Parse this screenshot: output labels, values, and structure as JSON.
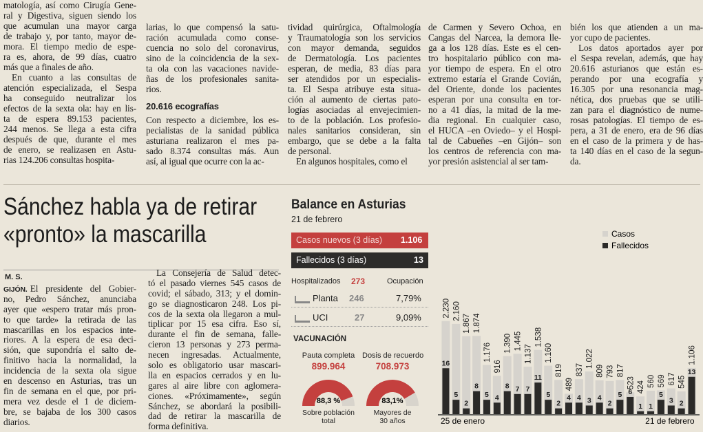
{
  "top_article": {
    "columns": [
      {
        "blocks": [
          {
            "lines": [
              "matología, así como Cirugía Gene-",
              "ral y Digestiva, siguen siendo los",
              "que acumulan una mayor carga",
              "de trabajo y, por tanto, mayor de-",
              "mora. El tiempo medio de espe-",
              "ra es, ahora, de 99 días, cuatro",
              "más que a finales de año."
            ]
          },
          {
            "lines": [
              "En cuanto a las consultas de",
              "atención especializada, el Sespa",
              "ha conseguido neutralizar los",
              "efectos de la sexta ola: hay en lis-",
              "ta de espera 89.153 pacientes,",
              "244 menos. Se llega a esta cifra",
              "después de que, durante el mes",
              "de enero, se realizasen en Astu-",
              "rias 124.206 consultas hospita-"
            ]
          }
        ]
      },
      {
        "blocks": [
          {
            "lines": [
              "larias, lo que compensó la satu-",
              "ración acumulada como conse-",
              "cuencia no solo del coronavirus,",
              "sino de la coincidencia de la sex-",
              "ta ola con las vacaciones navide-",
              "ñas de los profesionales sanita-",
              "rios."
            ]
          },
          {
            "heading": "20.616 ecografías"
          },
          {
            "lines": [
              "Con respecto a diciembre, los es-",
              "pecialistas de la sanidad pública",
              "asturiana realizaron el mes pa-",
              "sado 8.374 consultas más. Aun",
              "así, al igual que ocurre con la ac-"
            ]
          }
        ]
      },
      {
        "blocks": [
          {
            "lines": [
              "tividad quirúrgica, Oftalmología",
              "y Traumatología son los servicios",
              "con mayor demanda, seguidos",
              "de Dermatología. Los pacientes",
              "esperan, de media, 83 días para",
              "ser atendidos por un especialis-",
              "ta. El Sespa atribuye esta situa-",
              "ción al aumento de ciertas pato-",
              "logías asociadas al envejecimien-",
              "to de la población. Los profesio-",
              "nales sanitarios consideran, sin",
              "embargo, que se debe a la falta",
              "de personal."
            ]
          },
          {
            "lines": [
              "En algunos hospitales, como el"
            ]
          }
        ]
      },
      {
        "blocks": [
          {
            "lines": [
              "de Carmen y Severo Ochoa, en",
              "Cangas del Narcea, la demora lle-",
              "ga a los 128 días. Este es el cen-",
              "tro hospitalario público con ma-",
              "yor tiempo de espera. En el otro",
              "extremo estaría el Grande Covián,",
              "del Oriente, donde los pacientes",
              "esperan por una consulta en tor-",
              "no a 41 días, la mitad de la me-",
              "dia regional. En cualquier caso,",
              "el HUCA –en Oviedo– y el Hospi-",
              "tal de Cabueñes –en Gijón– son",
              "los centros de referencia con ma-",
              "yor presión asistencial al ser tam-"
            ]
          }
        ]
      },
      {
        "blocks": [
          {
            "lines": [
              "bién los que atienden a un ma-",
              "yor cupo de pacientes."
            ]
          },
          {
            "lines": [
              "Los datos aportados ayer por",
              "el Sespa revelan, además, que hay",
              "20.616 asturianos que están es-",
              "perando por una ecografía y",
              "16.305 por una resonancia mag-",
              "nética, dos pruebas que se utili-",
              "zan para el diagnóstico de nume-",
              "rosas patologías. El tiempo de es-",
              "pera, a 31 de enero, era de 96 días",
              "en el caso de la primera y de has-",
              "ta 140 días en el caso de la segun-",
              "da."
            ]
          }
        ]
      }
    ]
  },
  "article": {
    "headline": [
      "Sánchez habla ya de retirar",
      "«pronto» la mascarilla"
    ],
    "byline": "M. S.",
    "dateline": "GIJÓN.",
    "columns": [
      [
        "El presidente del Gobier-",
        "no, Pedro Sánchez, anunciaba",
        "ayer que «espero tratar más pron-",
        "to que tarde» la retirada de las",
        "mascarillas en los espacios inte-",
        "riores. A la espera de esa deci-",
        "sión, que supondría el salto de-",
        "finitivo hacia la normalidad, la",
        "incidencia de la sexta ola sigue",
        "en descenso en Asturias, tras un",
        "fin de semana en el que, por pri-",
        "mera vez desde el 1 de diciem-",
        "bre, se bajaba de los 300 casos",
        "diarios."
      ],
      [
        "La Consejería de Salud detec-",
        "tó el pasado viernes 545 casos de",
        "covid; el sábado, 313; y el domin-",
        "go se diagnosticaron 248. Los pi-",
        "cos de la sexta ola llegaron a mul-",
        "tiplicar por 15 esa cifra. Eso sí,",
        "durante el fin de semana, falle-",
        "cieron 13 personas y 273 perma-",
        "necen ingresadas. Actualmente,",
        "solo es obligatorio usar mascari-",
        "lla en espacios cerrados y en lu-",
        "gares al aire libre con aglomera-",
        "ciones. «Próximamente», según",
        "Sánchez, se abordará la posibili-",
        "dad de retirar la mascarilla de",
        "forma definitiva."
      ]
    ]
  },
  "infographic": {
    "title": "Balance en Asturias",
    "date": "21 de febrero",
    "new_cases": {
      "label": "Casos nuevos (3 días)",
      "value": "1.106"
    },
    "deaths": {
      "label": "Fallecidos (3 días)",
      "value": "13"
    },
    "hospital": {
      "header": [
        "Hospitalizados",
        "273",
        "Ocupación"
      ],
      "rows": [
        [
          "Planta",
          "246",
          "7,79%"
        ],
        [
          "UCI",
          "27",
          "9,09%"
        ]
      ]
    },
    "vaccination": {
      "title": "VACUNACIÓN",
      "gauges": [
        {
          "title": "Pauta completa",
          "count": "899.964",
          "value": 88.3,
          "value_label": "88,3 %",
          "caption": [
            "Sobre población",
            "total"
          ]
        },
        {
          "title": "Dosis de recuerdo",
          "count": "708.973",
          "value": 83.1,
          "value_label": "83,1%",
          "caption": [
            "Mayores de",
            "30 años"
          ]
        }
      ]
    }
  },
  "chart_data": {
    "type": "bar",
    "x_labels": [
      "25 de enero",
      "21 de febrero"
    ],
    "ylim": [
      0,
      4400
    ],
    "y2lim": [
      0,
      64
    ],
    "series": [
      {
        "name": "Casos",
        "color": "#d6d3cd",
        "values": [
          2230,
          2160,
          1867,
          1874,
          1176,
          916,
          1390,
          1445,
          1137,
          1538,
          1160,
          819,
          489,
          837,
          1022,
          809,
          793,
          817,
          523,
          424,
          560,
          569,
          617,
          545,
          1106
        ],
        "value_labels": [
          "2.230",
          "2.160",
          "1.867",
          "1.874",
          "1.176",
          "916",
          "1.390",
          "1.445",
          "1.137",
          "1.538",
          "1.160",
          "819",
          "489",
          "837",
          "1.022",
          "809",
          "793",
          "817",
          "523",
          "424",
          "560",
          "569",
          "617",
          "545",
          "1.106"
        ]
      },
      {
        "name": "Fallecidos",
        "color": "#2b2a28",
        "axis": "y2",
        "values": [
          16,
          5,
          2,
          8,
          5,
          4,
          8,
          7,
          7,
          11,
          5,
          2,
          4,
          4,
          3,
          4,
          2,
          5,
          6,
          1,
          1,
          5,
          3,
          2,
          13
        ]
      }
    ]
  }
}
